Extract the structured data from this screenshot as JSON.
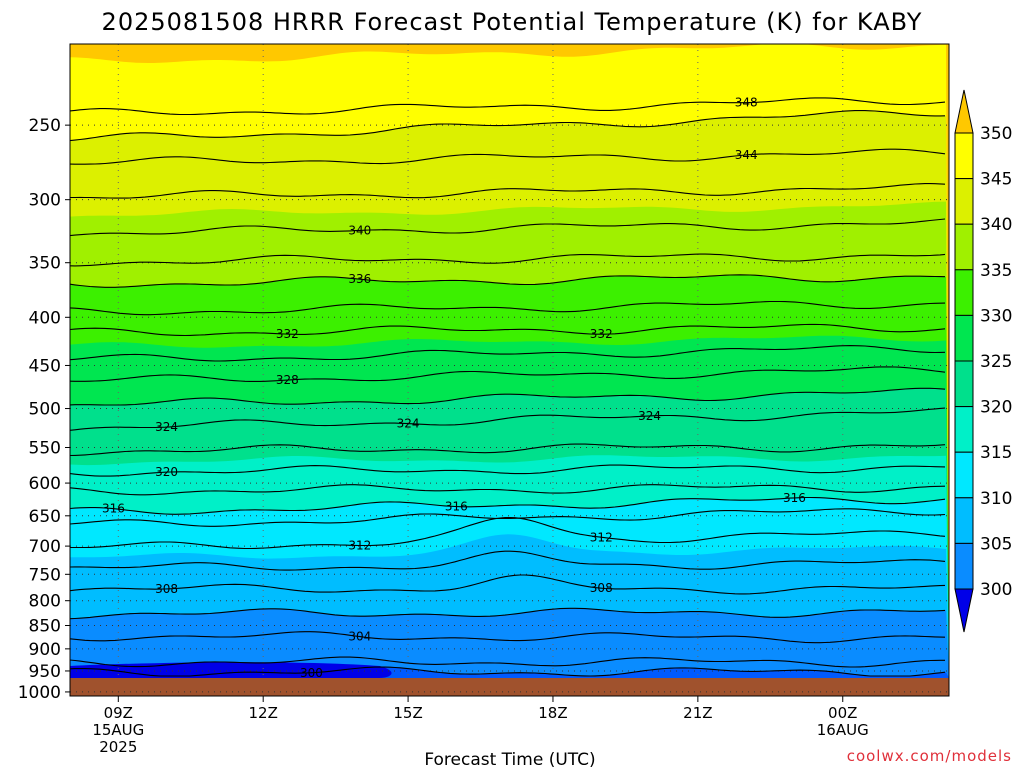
{
  "chart_data": {
    "type": "heatmap",
    "title": "2025081508 HRRR Forecast Potential Temperature (K) for KABY",
    "xlabel": "Forecast Time (UTC)",
    "ylabel": "",
    "x_ticks": [
      {
        "hour": 9,
        "lines": [
          "09Z",
          "15AUG",
          "2025"
        ]
      },
      {
        "hour": 12,
        "lines": [
          "12Z"
        ]
      },
      {
        "hour": 15,
        "lines": [
          "15Z"
        ]
      },
      {
        "hour": 18,
        "lines": [
          "18Z"
        ]
      },
      {
        "hour": 21,
        "lines": [
          "21Z"
        ]
      },
      {
        "hour": 24,
        "lines": [
          "00Z",
          "16AUG"
        ]
      }
    ],
    "xlim": [
      8,
      26.2
    ],
    "y_ticks": [
      250,
      300,
      350,
      400,
      450,
      500,
      550,
      600,
      650,
      700,
      750,
      800,
      850,
      900,
      950,
      1000
    ],
    "ylim": [
      1010,
      205
    ],
    "y_scale": "log",
    "colorbar": {
      "levels": [
        300,
        305,
        310,
        315,
        320,
        325,
        330,
        335,
        340,
        345,
        350
      ],
      "colors": [
        "#0000e8",
        "#005aff",
        "#0a8cff",
        "#00bdff",
        "#00e8ff",
        "#00f0c8",
        "#00e08c",
        "#00e650",
        "#3cf000",
        "#a0f000",
        "#dcf000",
        "#ffff00",
        "#ffc800"
      ]
    },
    "contours": [
      {
        "level": 300,
        "labels": [
          {
            "hour": 13.0
          }
        ]
      },
      {
        "level": 304,
        "labels": [
          {
            "hour": 14.0
          }
        ]
      },
      {
        "level": 308,
        "labels": [
          {
            "hour": 10.0
          },
          {
            "hour": 19.0
          }
        ]
      },
      {
        "level": 312,
        "labels": [
          {
            "hour": 14.0
          },
          {
            "hour": 19.0
          }
        ]
      },
      {
        "level": 316,
        "labels": [
          {
            "hour": 8.9
          },
          {
            "hour": 16.0
          },
          {
            "hour": 23.0
          }
        ]
      },
      {
        "level": 320,
        "labels": [
          {
            "hour": 10.0
          }
        ]
      },
      {
        "level": 324,
        "labels": [
          {
            "hour": 10.0
          },
          {
            "hour": 15.0
          },
          {
            "hour": 20.0
          }
        ]
      },
      {
        "level": 328,
        "labels": [
          {
            "hour": 12.5
          }
        ]
      },
      {
        "level": 332,
        "labels": [
          {
            "hour": 12.5
          },
          {
            "hour": 19.0
          }
        ]
      },
      {
        "level": 336,
        "labels": [
          {
            "hour": 14.0
          }
        ]
      },
      {
        "level": 340,
        "labels": [
          {
            "hour": 14.0
          }
        ]
      },
      {
        "level": 344,
        "labels": [
          {
            "hour": 22.0
          }
        ]
      },
      {
        "level": 348,
        "labels": [
          {
            "hour": 22.0
          }
        ]
      }
    ],
    "surface_color": "#a0522d",
    "grid": true
  },
  "watermark": "coolwx.com/models"
}
